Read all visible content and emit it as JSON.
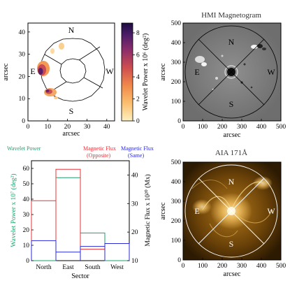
{
  "panels": {
    "wavelet_map": {
      "xlabel": "arcsec",
      "ylabel": "arcsec",
      "xticks": [
        "0",
        "10",
        "20",
        "30",
        "40"
      ],
      "yticks": [
        "0",
        "10",
        "20",
        "30",
        "40"
      ],
      "directions": {
        "n": "N",
        "e": "E",
        "w": "W",
        "s": "S"
      },
      "colorbar_label": "Wavelet Power x 10⁶ (deg²)",
      "colorbar_ticks": [
        "0",
        "2",
        "4",
        "6",
        "8"
      ],
      "colormap": [
        "#fdf0c0",
        "#fbbf70",
        "#f08a4b",
        "#cf4f4f",
        "#8e2f6a",
        "#4b1d68",
        "#1b0c41"
      ]
    },
    "hmi": {
      "title": "HMI Magnetogram",
      "xlabel": "arcsec",
      "ylabel": "arcsec",
      "xticks": [
        "0",
        "100",
        "200",
        "300",
        "400",
        "500"
      ],
      "yticks": [
        "0",
        "100",
        "200",
        "300",
        "400",
        "500"
      ],
      "directions": {
        "n": "N",
        "e": "E",
        "w": "W",
        "s": "S"
      }
    },
    "aia": {
      "title": "AIA 171Å",
      "xlabel": "arcsec",
      "ylabel": "arcsec",
      "xticks": [
        "0",
        "100",
        "200",
        "300",
        "400",
        "500"
      ],
      "yticks": [
        "0",
        "100",
        "200",
        "300",
        "400",
        "500"
      ],
      "directions": {
        "n": "N",
        "e": "E",
        "w": "W",
        "s": "S"
      }
    }
  },
  "chart_data": {
    "type": "bar",
    "style": "step",
    "categories": [
      "North",
      "East",
      "South",
      "West"
    ],
    "xlabel": "Sector",
    "ylabel": "Wavelet Power x 10⁷ (deg²)",
    "y2label": "Magnetic Flux x 10²⁰ (Mx)",
    "ylim": [
      0,
      65
    ],
    "yticks": [
      "0",
      "10",
      "20",
      "30",
      "40",
      "50",
      "60"
    ],
    "y2lim": [
      10,
      45
    ],
    "y2ticks": [
      "10",
      "20",
      "30",
      "40"
    ],
    "legend": {
      "wavelet": "Wavelet Power",
      "opposite": [
        "Magnetic Flux",
        "(Opposite)"
      ],
      "same": [
        "Magnetic Flux",
        "(Same)"
      ]
    },
    "series": [
      {
        "key": "wavelet",
        "axis": "left",
        "color": "#1aa36a",
        "values": [
          0,
          54,
          18,
          0
        ]
      },
      {
        "key": "opposite",
        "axis": "right",
        "color": "#e8333a",
        "values": [
          31,
          42,
          14,
          16
        ]
      },
      {
        "key": "same",
        "axis": "right",
        "color": "#2a2ad8",
        "values": [
          17,
          13,
          15,
          16
        ]
      }
    ]
  }
}
